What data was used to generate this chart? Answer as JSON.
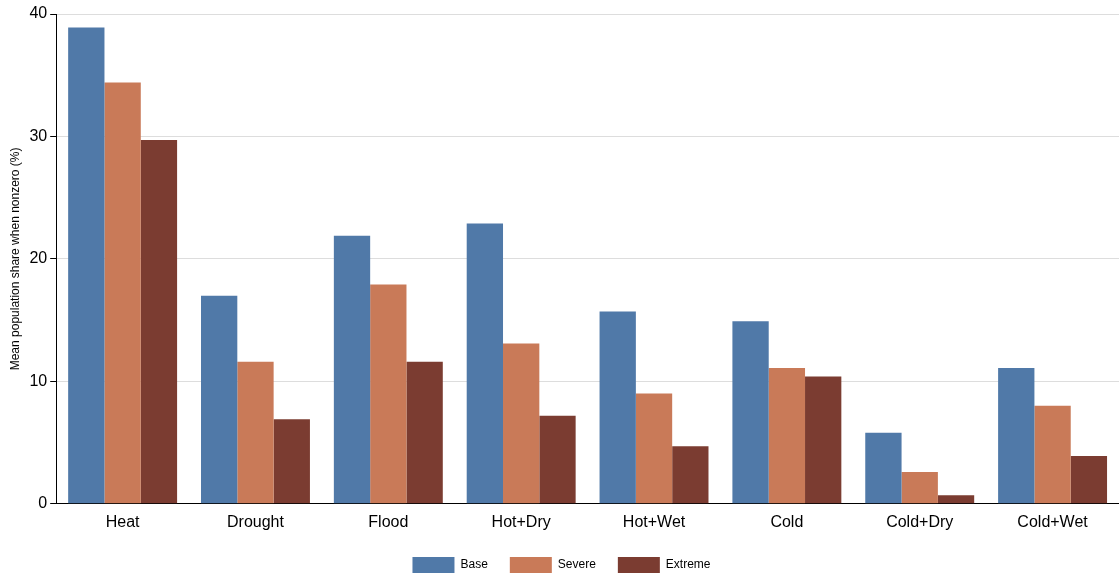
{
  "chart_data": {
    "type": "bar",
    "ylabel": "Mean population share when nonzero (%)",
    "categories": [
      "Heat",
      "Drought",
      "Flood",
      "Hot+Dry",
      "Hot+Wet",
      "Cold",
      "Cold+Dry",
      "Cold+Wet"
    ],
    "series": [
      {
        "name": "Base",
        "color": "#5079a8",
        "values": [
          38.9,
          17.0,
          21.9,
          22.9,
          15.7,
          14.9,
          5.8,
          11.1
        ]
      },
      {
        "name": "Severe",
        "color": "#c97a58",
        "values": [
          34.4,
          11.6,
          17.9,
          13.1,
          9.0,
          11.1,
          2.6,
          8.0
        ]
      },
      {
        "name": "Extreme",
        "color": "#7b3c31",
        "values": [
          29.7,
          6.9,
          11.6,
          7.2,
          4.7,
          10.4,
          0.7,
          3.9
        ]
      }
    ],
    "ylim": [
      0,
      40
    ],
    "yticks": [
      0,
      10,
      20,
      30,
      40
    ],
    "grid": "y",
    "legend": "bottom"
  }
}
